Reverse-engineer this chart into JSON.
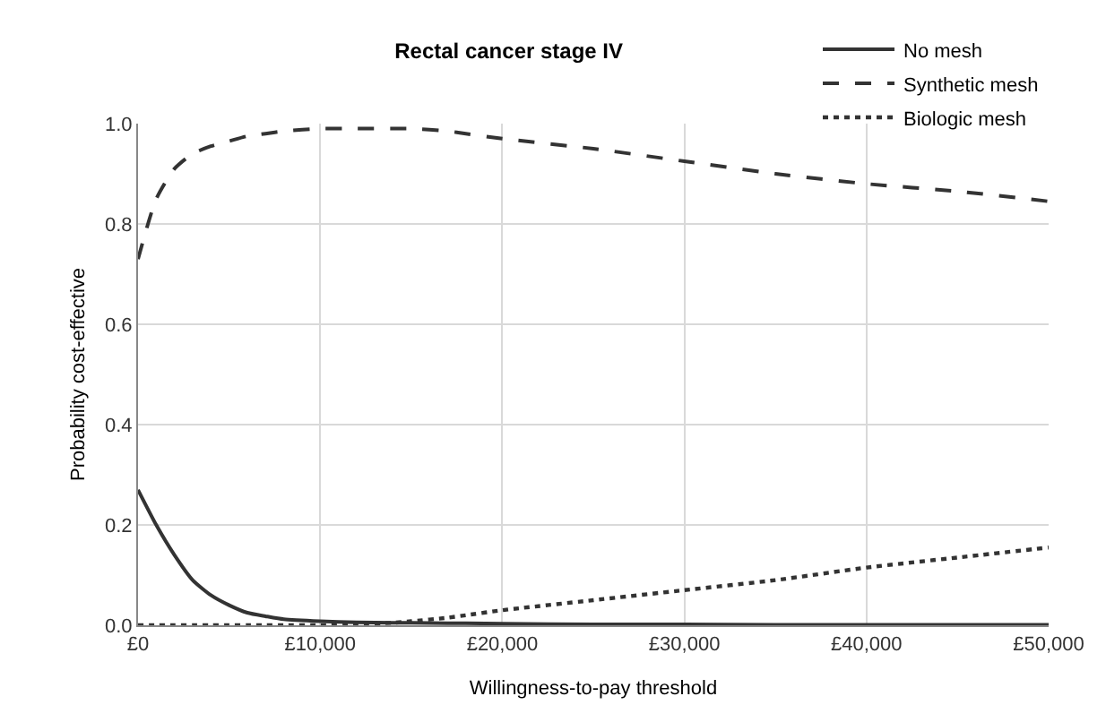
{
  "chart_data": {
    "type": "line",
    "title": "Rectal cancer stage IV",
    "xlabel": "Willingness-to-pay threshold",
    "ylabel": "Probability cost-effective",
    "x": [
      0,
      1000,
      2000,
      3000,
      4000,
      5000,
      6000,
      7000,
      8000,
      10000,
      12000,
      14000,
      15000,
      17000,
      18000,
      20000,
      25000,
      30000,
      35000,
      40000,
      45000,
      50000
    ],
    "series": [
      {
        "name": "No mesh",
        "color": "#333333",
        "line_style": "solid",
        "values": [
          0.27,
          0.2,
          0.14,
          0.09,
          0.06,
          0.04,
          0.025,
          0.018,
          0.012,
          0.008,
          0.006,
          0.005,
          0.005,
          0.004,
          0.004,
          0.003,
          0.002,
          0.002,
          0.001,
          0.001,
          0.001,
          0.001
        ]
      },
      {
        "name": "Synthetic mesh",
        "color": "#333333",
        "line_style": "dashed",
        "values": [
          0.73,
          0.85,
          0.91,
          0.94,
          0.955,
          0.965,
          0.975,
          0.98,
          0.985,
          0.99,
          0.99,
          0.99,
          0.99,
          0.985,
          0.98,
          0.97,
          0.95,
          0.925,
          0.9,
          0.88,
          0.865,
          0.845
        ]
      },
      {
        "name": "Biologic mesh",
        "color": "#333333",
        "line_style": "dotted",
        "values": [
          0,
          0,
          0,
          0,
          0,
          0,
          0,
          0,
          0,
          0,
          0.002,
          0.005,
          0.008,
          0.015,
          0.02,
          0.03,
          0.05,
          0.07,
          0.09,
          0.115,
          0.135,
          0.155
        ]
      }
    ],
    "xlim": [
      0,
      50000
    ],
    "xticks": [
      {
        "value": 0,
        "label": "£0"
      },
      {
        "value": 10000,
        "label": "£10,000"
      },
      {
        "value": 20000,
        "label": "£20,000"
      },
      {
        "value": 30000,
        "label": "£30,000"
      },
      {
        "value": 40000,
        "label": "£40,000"
      },
      {
        "value": 50000,
        "label": "£50,000"
      }
    ],
    "ylim": [
      0,
      1
    ],
    "yticks": [
      {
        "value": 0,
        "label": "0.0"
      },
      {
        "value": 0.2,
        "label": "0.2"
      },
      {
        "value": 0.4,
        "label": "0.4"
      },
      {
        "value": 0.6,
        "label": "0.6"
      },
      {
        "value": 0.8,
        "label": "0.8"
      },
      {
        "value": 1,
        "label": "1.0"
      }
    ],
    "grid": true,
    "legend": "top right",
    "marker": "none"
  }
}
